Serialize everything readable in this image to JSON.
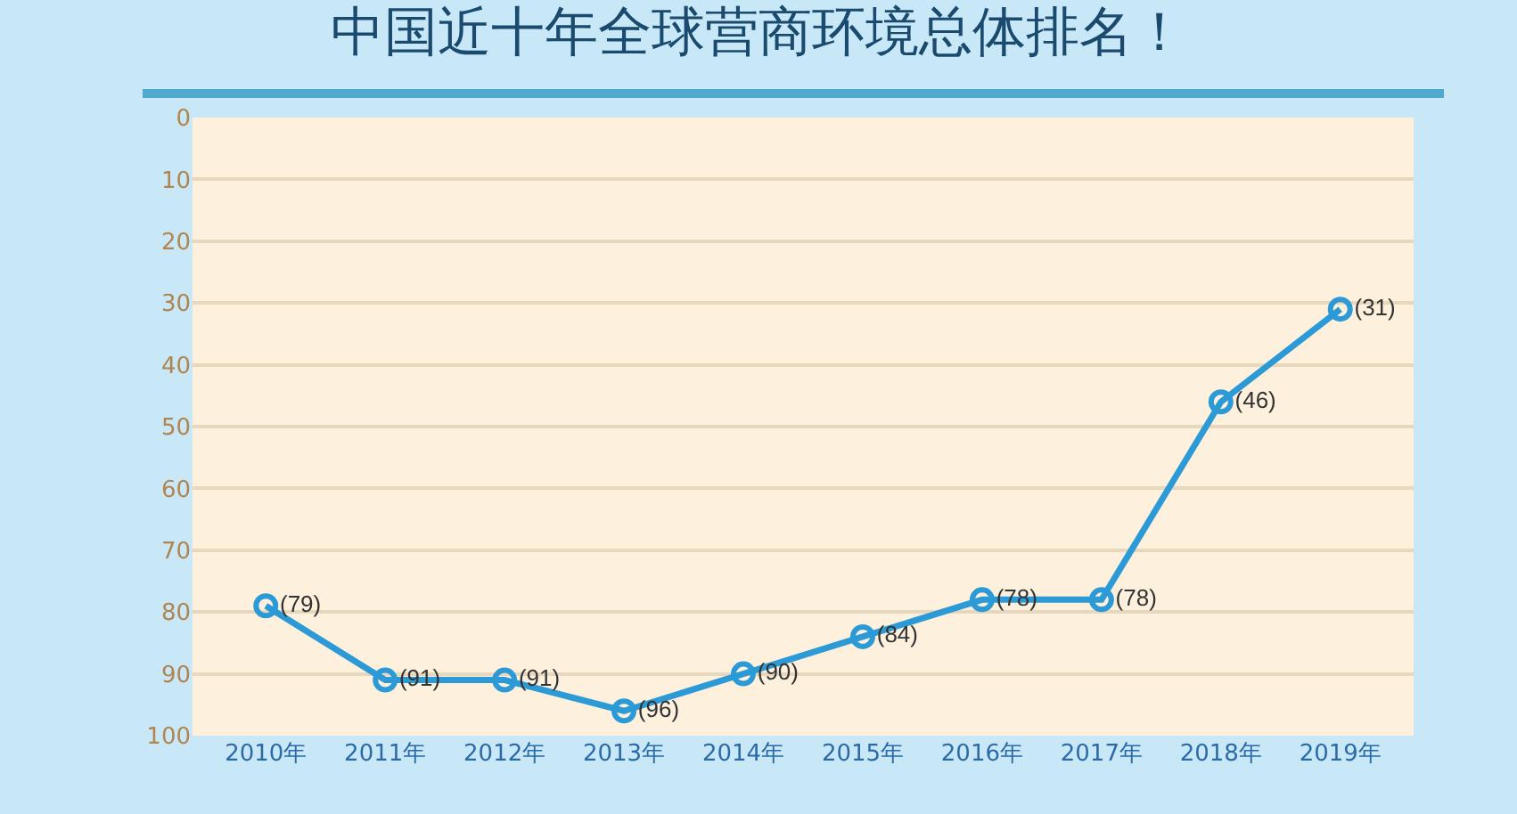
{
  "chart_data": {
    "type": "line",
    "title": "中国近十年全球营商环境总体排名！",
    "categories": [
      "2010年",
      "2011年",
      "2012年",
      "2013年",
      "2014年",
      "2015年",
      "2016年",
      "2017年",
      "2018年",
      "2019年"
    ],
    "series": [
      {
        "color": "#2b9ad6",
        "values": [
          79,
          91,
          91,
          96,
          90,
          84,
          78,
          78,
          46,
          31
        ],
        "value_labels": [
          "(79)",
          "(91)",
          "(91)",
          "(96)",
          "(90)",
          "(84)",
          "(78)",
          "(78)",
          "(46)",
          "(31)"
        ]
      }
    ],
    "ylim": [
      100,
      0
    ],
    "yticks": [
      0,
      10,
      20,
      30,
      40,
      50,
      60,
      70,
      80,
      90,
      100
    ],
    "grid": "y",
    "marker": "circle",
    "line_style": "solid"
  }
}
